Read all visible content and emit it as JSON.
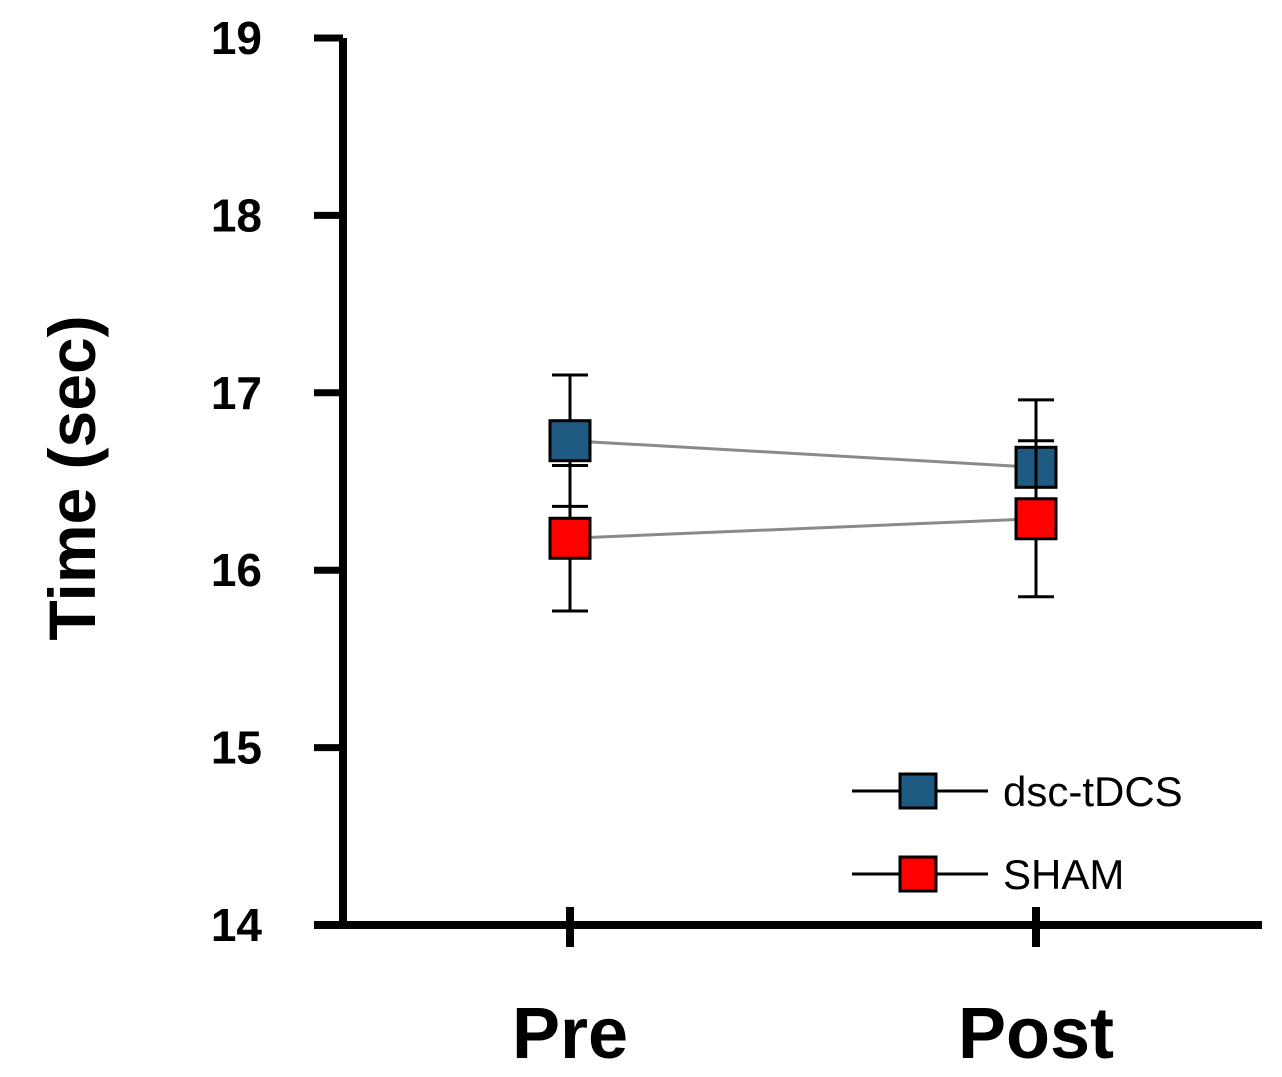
{
  "chart_data": {
    "type": "line",
    "title": "",
    "xlabel": "",
    "ylabel": "Time (sec)",
    "categories": [
      "Pre",
      "Post"
    ],
    "ylim": [
      14,
      19
    ],
    "yticks": [
      14,
      15,
      16,
      17,
      18,
      19
    ],
    "grid": false,
    "legend_position": "bottom-right",
    "series": [
      {
        "name": "dsc-tDCS",
        "color": "#1e5a82",
        "values": [
          16.73,
          16.58
        ],
        "error": [
          0.37,
          0.38
        ]
      },
      {
        "name": "SHAM",
        "color": "#ff0000",
        "values": [
          16.18,
          16.29
        ],
        "error": [
          0.41,
          0.44
        ]
      }
    ]
  }
}
